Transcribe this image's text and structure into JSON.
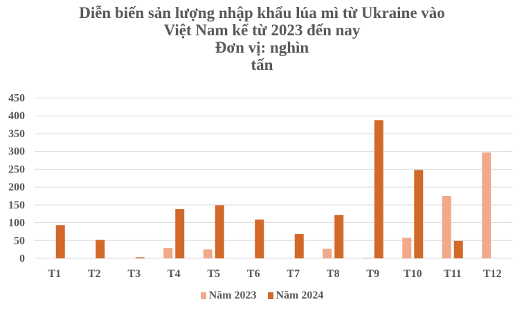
{
  "title": {
    "line1": "Diễn biến sản lượng nhập khẩu lúa mì từ Ukraine vào",
    "line2": "Việt Nam kể từ 2023 đến nay",
    "line3": "Đơn vị: nghìn",
    "line4": "tấn"
  },
  "colors": {
    "series_2023": "#F1A98A",
    "series_2024": "#D2692A",
    "grid": "#D9D9D9",
    "text": "#595959"
  },
  "legend": [
    {
      "label": "Năm 2023",
      "color": "#F1A98A"
    },
    {
      "label": "Năm 2024",
      "color": "#D2692A"
    }
  ],
  "chart_data": {
    "type": "bar",
    "title": "Diễn biến sản lượng nhập khẩu lúa mì từ Ukraine vào Việt Nam kể từ 2023 đến nay — Đơn vị: nghìn tấn",
    "categories": [
      "T1",
      "T2",
      "T3",
      "T4",
      "T5",
      "T6",
      "T7",
      "T8",
      "T9",
      "T10",
      "T11",
      "T12"
    ],
    "series": [
      {
        "name": "Năm 2023",
        "color": "#F1A98A",
        "values": [
          0,
          0,
          0,
          29,
          25,
          0,
          0,
          27,
          2,
          58,
          175,
          297
        ]
      },
      {
        "name": "Năm 2024",
        "color": "#D2692A",
        "values": [
          93,
          52,
          3,
          138,
          149,
          109,
          68,
          122,
          388,
          248,
          49,
          0
        ]
      }
    ],
    "xlabel": "",
    "ylabel": "nghìn tấn",
    "ylim": [
      0,
      450
    ],
    "yticks": [
      0,
      50,
      100,
      150,
      200,
      250,
      300,
      350,
      400,
      450
    ],
    "grid": true,
    "legend_position": "bottom"
  }
}
